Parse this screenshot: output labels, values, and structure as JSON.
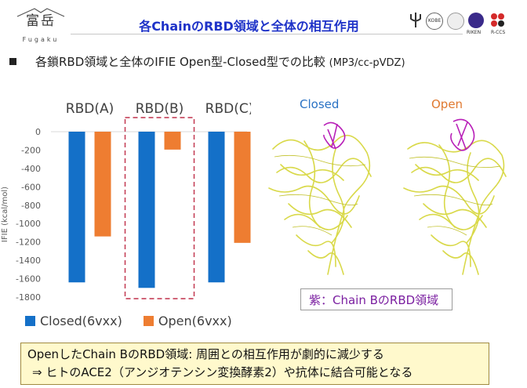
{
  "logo": {
    "kanji": "富岳",
    "romaji": "Fugaku"
  },
  "title": "各ChainのRBD領域と全体の相互作用",
  "sponsors": [
    "KOBE",
    "RIKEN",
    "R-CCS"
  ],
  "subtitle": {
    "main": "各鎖RBD領域と全体のIFIE  Open型-Closed型での比較",
    "method": "(MP3/cc-pVDZ)"
  },
  "structures": {
    "closed": "Closed",
    "open": "Open"
  },
  "rbd_note": "紫：Chain BのRBD領域",
  "conclusion": {
    "line1": "OpenしたChain BのRBD領域: 周囲との相互作用が劇的に減少する",
    "line2": "⇒  ヒトのACE2（アンジオテンシン変換酵素2）や抗体に結合可能となる"
  },
  "colors": {
    "closed": "#1470c8",
    "open": "#ee7d31",
    "highlight": "#c0304a",
    "rbd": "#b81fb8",
    "protein": "#d9d94a"
  },
  "chart_data": {
    "type": "bar",
    "categories": [
      "RBD(A)",
      "RBD(B)",
      "RBD(C)"
    ],
    "series": [
      {
        "name": "Closed(6vxx)",
        "values": [
          -1640,
          -1700,
          -1640
        ]
      },
      {
        "name": "Open(6vxx)",
        "values": [
          -1140,
          -195,
          -1210
        ]
      }
    ],
    "ylabel": "IFIE (kcal/mol)",
    "ylim": [
      -1800,
      0
    ],
    "yticks": [
      0,
      -200,
      -400,
      -600,
      -800,
      -1000,
      -1200,
      -1400,
      -1600,
      -1800
    ],
    "highlight_category": "RBD(B)",
    "legend": "bottom",
    "grid": false
  }
}
